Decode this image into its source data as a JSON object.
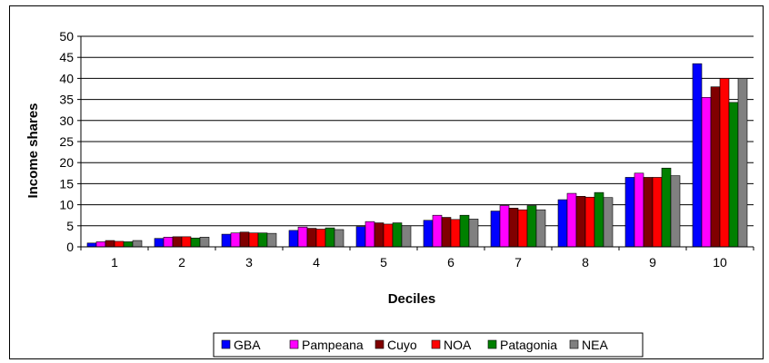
{
  "chart_data": {
    "type": "bar",
    "title": "",
    "xlabel": "Deciles",
    "ylabel": "Income shares",
    "ylim": [
      0,
      50
    ],
    "yticks": [
      0,
      5,
      10,
      15,
      20,
      25,
      30,
      35,
      40,
      45,
      50
    ],
    "grid": "horizontal",
    "legend_position": "bottom",
    "categories": [
      "1",
      "2",
      "3",
      "4",
      "5",
      "6",
      "7",
      "8",
      "9",
      "10"
    ],
    "series": [
      {
        "name": "GBA",
        "color": "#0000ff",
        "values": [
          0.9,
          2.0,
          3.0,
          3.9,
          4.8,
          6.3,
          8.5,
          11.2,
          16.5,
          43.5
        ]
      },
      {
        "name": "Pampeana",
        "color": "#ff00ff",
        "values": [
          1.2,
          2.3,
          3.3,
          4.7,
          6.0,
          7.5,
          9.8,
          12.7,
          17.5,
          35.5
        ]
      },
      {
        "name": "Cuyo",
        "color": "#800000",
        "values": [
          1.5,
          2.4,
          3.5,
          4.4,
          5.7,
          7.0,
          9.2,
          12.0,
          16.5,
          38.0
        ]
      },
      {
        "name": "NOA",
        "color": "#ff0000",
        "values": [
          1.3,
          2.4,
          3.3,
          4.2,
          5.4,
          6.5,
          8.8,
          11.8,
          16.5,
          40.0
        ]
      },
      {
        "name": "Patagonia",
        "color": "#008000",
        "values": [
          1.2,
          2.1,
          3.3,
          4.5,
          5.7,
          7.5,
          9.8,
          12.9,
          18.7,
          34.3
        ]
      },
      {
        "name": "NEA",
        "color": "#808080",
        "values": [
          1.5,
          2.3,
          3.2,
          4.1,
          5.0,
          6.6,
          8.8,
          11.7,
          16.9,
          40.0
        ]
      }
    ]
  }
}
